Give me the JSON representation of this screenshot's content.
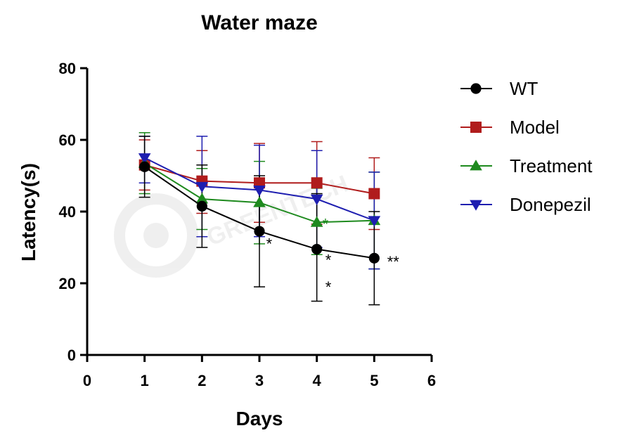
{
  "chart_data": {
    "type": "line",
    "title": "Water maze",
    "xlabel": "Days",
    "ylabel": "Latency(s)",
    "xlim": [
      0,
      6
    ],
    "ylim": [
      0,
      80
    ],
    "xticks": [
      0,
      1,
      2,
      3,
      4,
      5,
      6
    ],
    "yticks": [
      0,
      20,
      40,
      60,
      80
    ],
    "grid": false,
    "legend_position": "right",
    "x": [
      1,
      2,
      3,
      4,
      5
    ],
    "series": [
      {
        "name": "WT",
        "color": "#000000",
        "marker": "circle",
        "values": [
          52.5,
          41.5,
          34.5,
          29.5,
          27
        ],
        "err_low": [
          44,
          30,
          19,
          15,
          14
        ],
        "err_high": [
          61,
          53,
          50,
          45,
          40
        ]
      },
      {
        "name": "Model",
        "color": "#b01c1c",
        "marker": "square",
        "values": [
          53,
          48.5,
          48,
          48,
          45
        ],
        "err_low": [
          46,
          39.5,
          37,
          36.5,
          35
        ],
        "err_high": [
          60,
          57,
          59,
          59.5,
          55
        ]
      },
      {
        "name": "Treatment",
        "color": "#1e8a1e",
        "marker": "triangle-up",
        "values": [
          53.5,
          43.5,
          42.5,
          37,
          37.5
        ],
        "err_low": [
          45,
          35,
          31,
          28,
          24
        ],
        "err_high": [
          62,
          52,
          54,
          46.5,
          51
        ]
      },
      {
        "name": "Donepezil",
        "color": "#1e1eb0",
        "marker": "triangle-down",
        "values": [
          55,
          47,
          46,
          43.5,
          37.5
        ],
        "err_low": [
          48,
          33,
          33,
          30,
          24
        ],
        "err_high": [
          61,
          61,
          58.5,
          57,
          51
        ]
      }
    ],
    "annotations": [
      {
        "text": "*",
        "x": 3.17,
        "y": 29.5,
        "color": "#000000"
      },
      {
        "text": "*",
        "x": 4.15,
        "y": 35,
        "color": "#1e8a1e"
      },
      {
        "text": "*",
        "x": 4.2,
        "y": 25,
        "color": "#000000"
      },
      {
        "text": "*",
        "x": 4.2,
        "y": 17.5,
        "color": "#000000"
      },
      {
        "text": "**",
        "x": 5.33,
        "y": 24.5,
        "color": "#000000"
      }
    ],
    "watermark": "GREENTECH"
  }
}
